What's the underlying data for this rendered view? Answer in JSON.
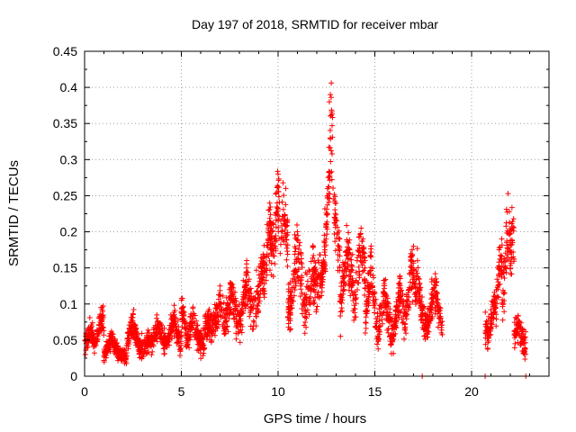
{
  "chart_data": {
    "type": "scatter",
    "title": "Day 197 of 2018, SRMTID for receiver mbar",
    "xlabel": "GPS time / hours",
    "ylabel": "SRMTID / TECUs",
    "xlim": [
      0,
      24
    ],
    "ylim": [
      0,
      0.45
    ],
    "xticks": [
      0,
      5,
      10,
      15,
      20
    ],
    "yticks": [
      0,
      0.05,
      0.1,
      0.15,
      0.2,
      0.25,
      0.3,
      0.35,
      0.4,
      0.45
    ],
    "grid": true,
    "legend": "none",
    "marker": "+",
    "color": "#ff0000",
    "envelope_description": "baseline level (TECU) over time; points scatter around it",
    "segments": [
      {
        "x_start": 0.0,
        "x_end": 1.0,
        "level": 0.04,
        "spread": 0.02,
        "peaks": [
          [
            0.3,
            0.07
          ],
          [
            0.9,
            0.1
          ]
        ]
      },
      {
        "x_start": 1.0,
        "x_end": 2.2,
        "level": 0.03,
        "spread": 0.015,
        "peaks": [
          [
            1.4,
            0.06
          ]
        ]
      },
      {
        "x_start": 2.2,
        "x_end": 3.2,
        "level": 0.04,
        "spread": 0.02,
        "peaks": [
          [
            2.5,
            0.085
          ]
        ]
      },
      {
        "x_start": 3.2,
        "x_end": 5.0,
        "level": 0.045,
        "spread": 0.02,
        "peaks": [
          [
            3.8,
            0.08
          ],
          [
            4.6,
            0.09
          ]
        ]
      },
      {
        "x_start": 5.0,
        "x_end": 6.2,
        "level": 0.045,
        "spread": 0.025,
        "peaks": [
          [
            5.0,
            0.11
          ],
          [
            5.6,
            0.09
          ]
        ]
      },
      {
        "x_start": 6.2,
        "x_end": 7.8,
        "level": 0.07,
        "spread": 0.03,
        "peaks": [
          [
            7.0,
            0.11
          ],
          [
            7.6,
            0.13
          ]
        ]
      },
      {
        "x_start": 7.8,
        "x_end": 9.0,
        "level": 0.075,
        "spread": 0.04,
        "peaks": [
          [
            8.4,
            0.15
          ],
          [
            8.9,
            0.12
          ]
        ]
      },
      {
        "x_start": 9.0,
        "x_end": 10.5,
        "level": 0.14,
        "spread": 0.05,
        "peaks": [
          [
            9.6,
            0.22
          ],
          [
            10.0,
            0.28
          ],
          [
            10.3,
            0.26
          ]
        ]
      },
      {
        "x_start": 10.5,
        "x_end": 12.0,
        "level": 0.1,
        "spread": 0.05,
        "peaks": [
          [
            11.0,
            0.2
          ],
          [
            11.8,
            0.16
          ]
        ]
      },
      {
        "x_start": 12.0,
        "x_end": 13.2,
        "level": 0.13,
        "spread": 0.05,
        "peaks": [
          [
            12.6,
            0.25
          ],
          [
            12.7,
            0.33
          ],
          [
            12.75,
            0.4
          ],
          [
            13.0,
            0.23
          ]
        ]
      },
      {
        "x_start": 13.2,
        "x_end": 14.5,
        "level": 0.1,
        "spread": 0.045,
        "peaks": [
          [
            13.6,
            0.2
          ],
          [
            14.3,
            0.22
          ]
        ]
      },
      {
        "x_start": 14.5,
        "x_end": 16.5,
        "level": 0.06,
        "spread": 0.035,
        "peaks": [
          [
            14.8,
            0.18
          ],
          [
            15.5,
            0.13
          ],
          [
            16.3,
            0.13
          ]
        ]
      },
      {
        "x_start": 16.5,
        "x_end": 18.5,
        "level": 0.07,
        "spread": 0.03,
        "peaks": [
          [
            16.9,
            0.18
          ],
          [
            17.2,
            0.16
          ],
          [
            18.1,
            0.14
          ]
        ]
      },
      {
        "x_start": 20.7,
        "x_end": 21.6,
        "level": 0.06,
        "spread": 0.03,
        "peaks": [
          [
            21.2,
            0.11
          ],
          [
            21.5,
            0.2
          ]
        ]
      },
      {
        "x_start": 21.6,
        "x_end": 22.2,
        "level": 0.1,
        "spread": 0.05,
        "peaks": [
          [
            21.9,
            0.23
          ],
          [
            22.1,
            0.22
          ]
        ]
      },
      {
        "x_start": 22.2,
        "x_end": 22.8,
        "level": 0.04,
        "spread": 0.025,
        "peaks": [
          [
            22.4,
            0.08
          ]
        ]
      }
    ],
    "notable_points": [
      {
        "x": 12.75,
        "y": 0.406
      },
      {
        "x": 12.7,
        "y": 0.39
      },
      {
        "x": 12.65,
        "y": 0.38
      },
      {
        "x": 12.7,
        "y": 0.33
      },
      {
        "x": 10.0,
        "y": 0.28
      },
      {
        "x": 10.4,
        "y": 0.26
      },
      {
        "x": 21.95,
        "y": 0.228
      },
      {
        "x": 17.0,
        "y": 0.18
      },
      {
        "x": 17.45,
        "y": 0.0
      },
      {
        "x": 20.7,
        "y": 0.0
      },
      {
        "x": 22.8,
        "y": 0.0
      }
    ]
  }
}
